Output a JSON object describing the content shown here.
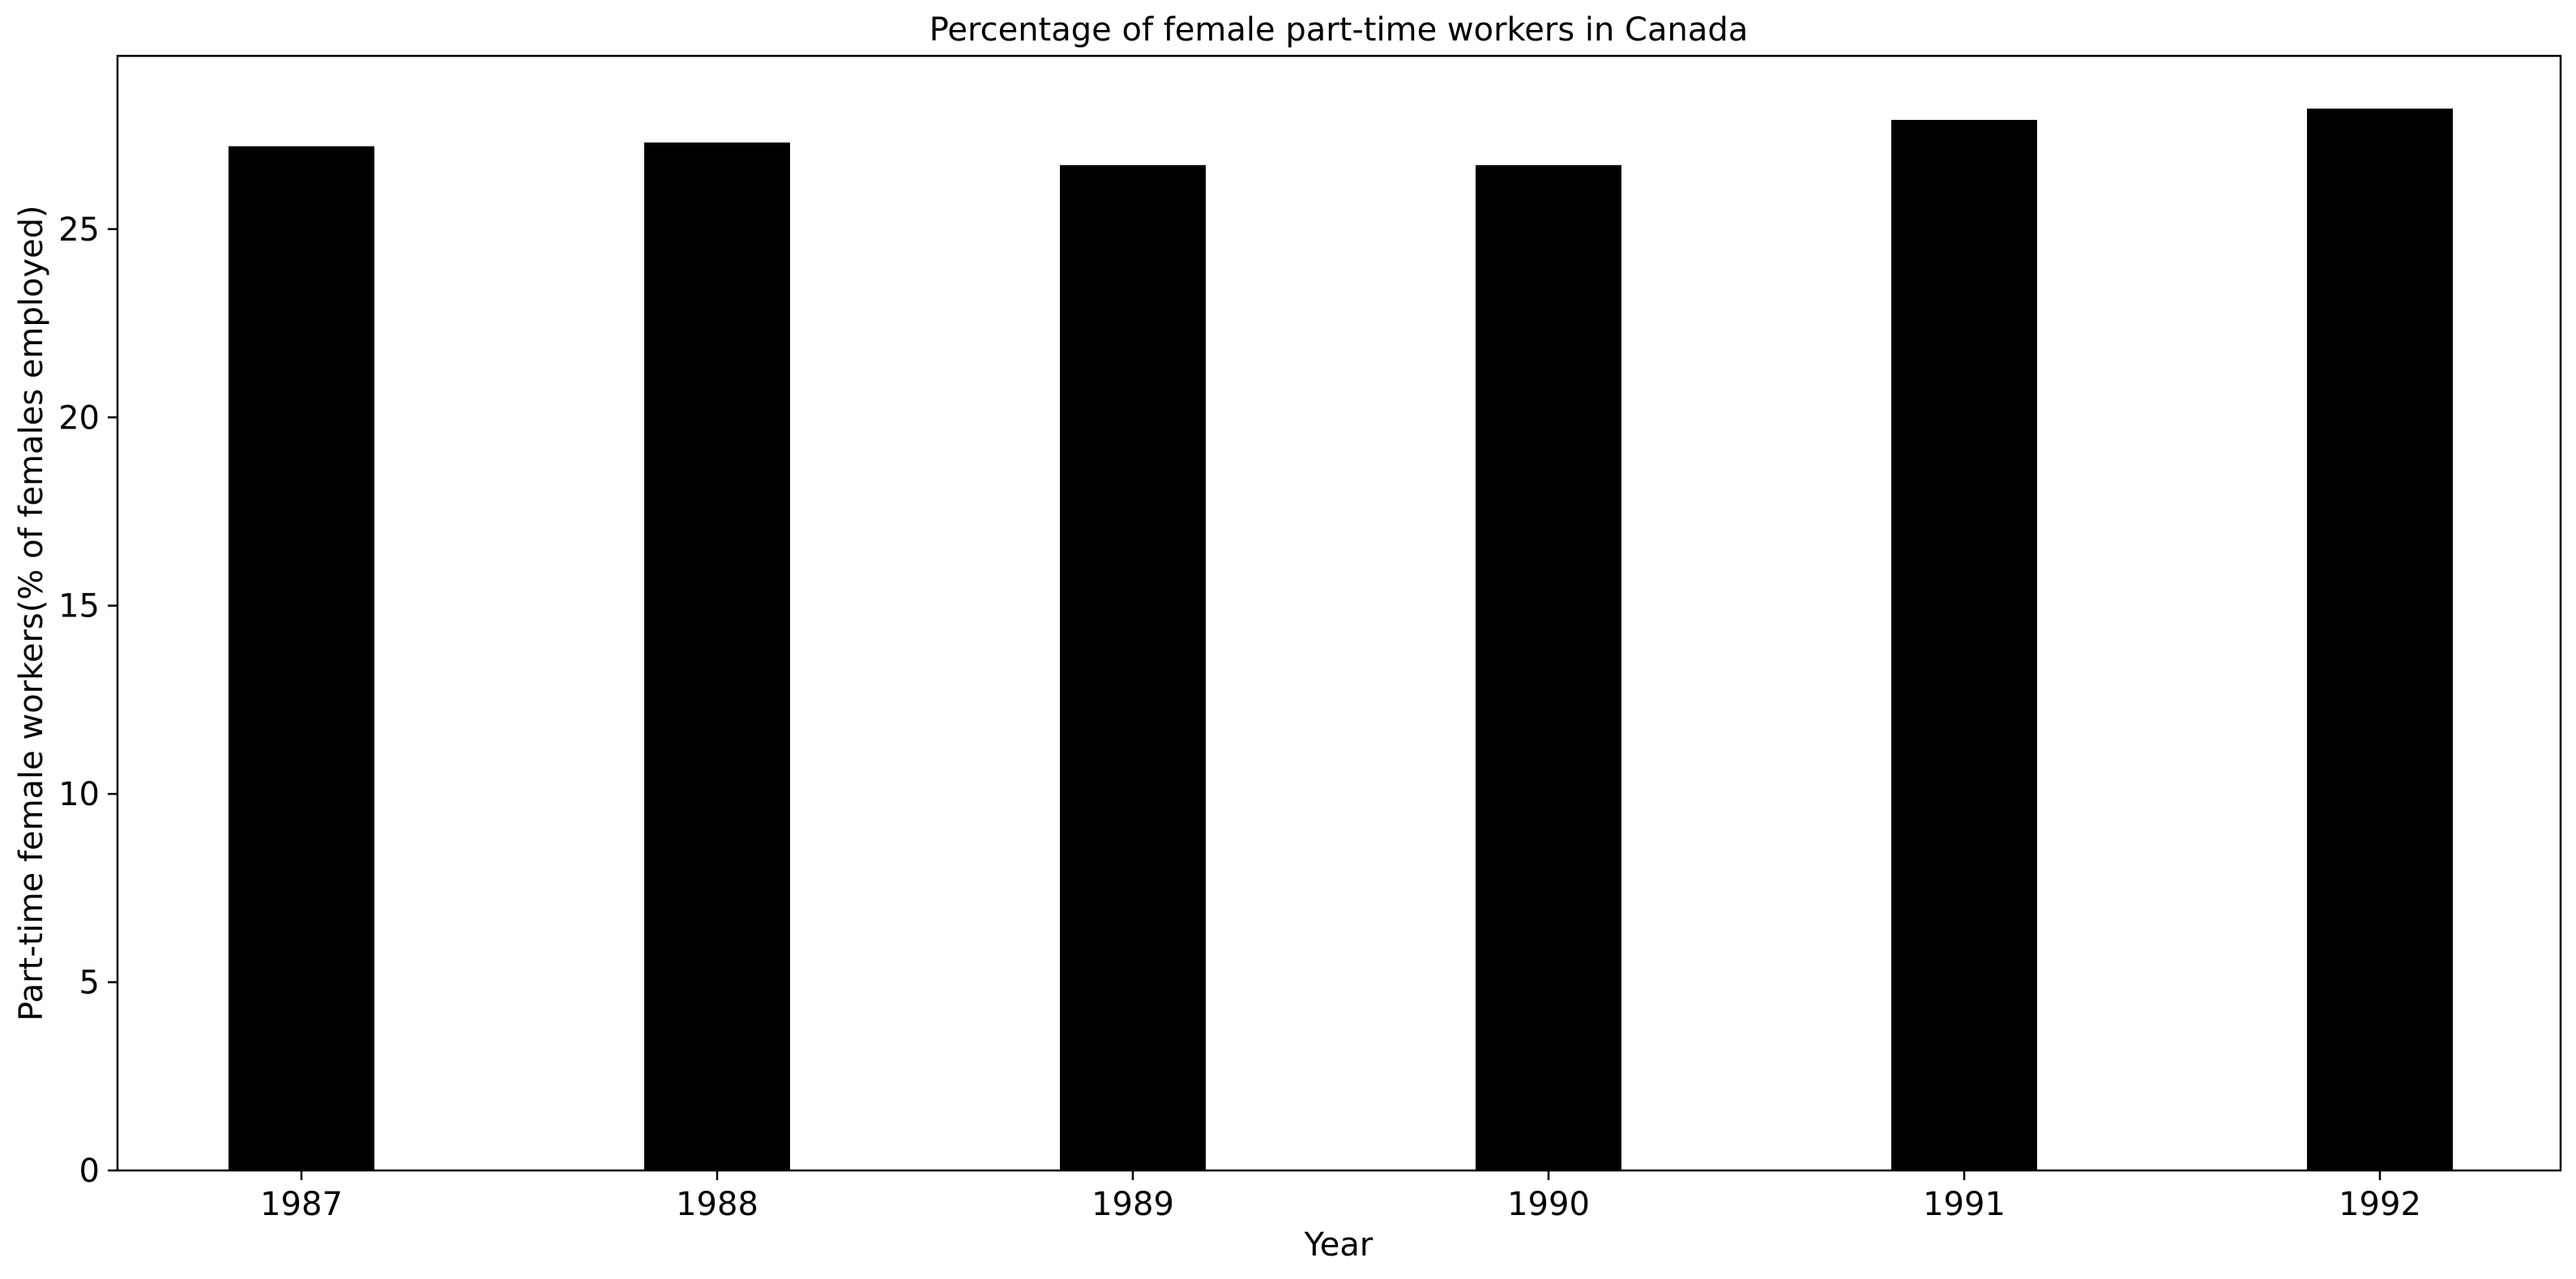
{
  "chart_data": {
    "type": "bar",
    "title": "Percentage of female part-time workers in Canada",
    "xlabel": "Year",
    "ylabel": "Part-time female workers(% of females employed)",
    "categories": [
      "1987",
      "1988",
      "1989",
      "1990",
      "1991",
      "1992"
    ],
    "values": [
      27.2,
      27.3,
      26.7,
      26.7,
      27.9,
      28.2
    ],
    "ylim": [
      0,
      29.6
    ],
    "yticks": [
      0,
      5,
      10,
      15,
      20,
      25
    ],
    "grid": false,
    "legend": "none",
    "bar_color": "#000000"
  }
}
